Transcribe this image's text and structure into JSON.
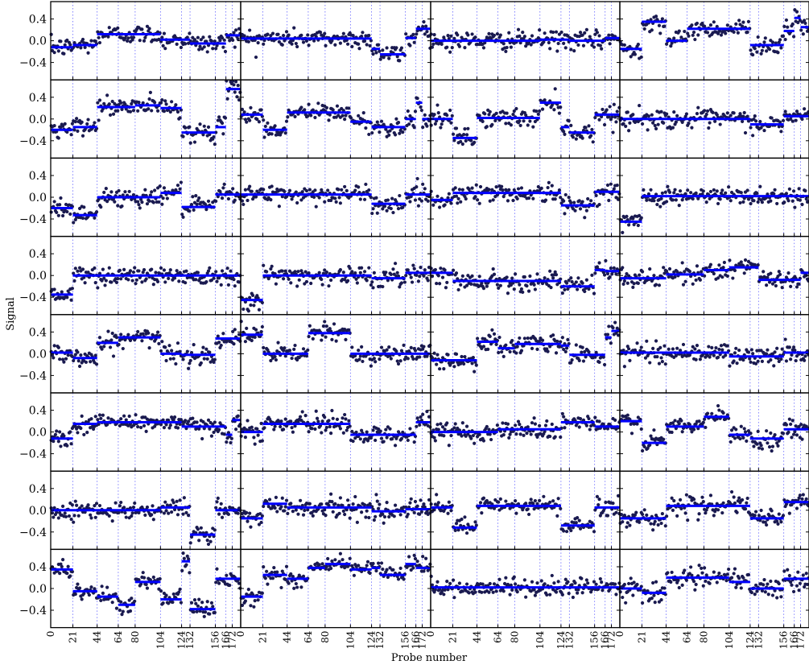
{
  "chart_data": {
    "type": "scatter",
    "layout": {
      "rows": 8,
      "cols": 4
    },
    "xlabel": "Probe number",
    "ylabel": "Signal",
    "xlim": [
      0,
      180
    ],
    "ylim": [
      -0.72,
      0.72
    ],
    "x_ticks": [
      0,
      21,
      44,
      64,
      80,
      104,
      124,
      132,
      156,
      166,
      172
    ],
    "y_ticks": [
      -0.4,
      0.0,
      0.4
    ],
    "y_tick_labels": [
      "−0.4",
      "0.0",
      "0.4"
    ],
    "vlines": [
      0,
      21,
      44,
      64,
      80,
      104,
      124,
      132,
      156,
      166,
      172
    ],
    "points_per_panel": 180,
    "colors": {
      "points": "#1a1a50",
      "segments": "#0000ff",
      "vlines": "#6666ff",
      "frame": "#000000"
    },
    "panels": [
      {
        "segments": [
          [
            0,
            21,
            -0.12
          ],
          [
            21,
            44,
            -0.08
          ],
          [
            44,
            104,
            0.12
          ],
          [
            104,
            132,
            0.02
          ],
          [
            132,
            166,
            -0.05
          ],
          [
            166,
            180,
            0.1
          ]
        ]
      },
      {
        "segments": [
          [
            0,
            124,
            0.04
          ],
          [
            124,
            132,
            -0.15
          ],
          [
            132,
            156,
            -0.25
          ],
          [
            156,
            166,
            0.05
          ],
          [
            166,
            180,
            0.22
          ]
        ]
      },
      {
        "segments": [
          [
            0,
            104,
            0.0
          ],
          [
            104,
            132,
            0.02
          ],
          [
            132,
            166,
            0.0
          ],
          [
            166,
            180,
            0.05
          ]
        ]
      },
      {
        "segments": [
          [
            0,
            21,
            -0.15
          ],
          [
            21,
            44,
            0.35
          ],
          [
            44,
            64,
            0.0
          ],
          [
            64,
            124,
            0.22
          ],
          [
            124,
            156,
            -0.08
          ],
          [
            156,
            166,
            0.18
          ],
          [
            166,
            172,
            0.42
          ],
          [
            172,
            180,
            0.25
          ]
        ]
      },
      {
        "segments": [
          [
            0,
            21,
            -0.2
          ],
          [
            21,
            44,
            -0.15
          ],
          [
            44,
            80,
            0.22
          ],
          [
            80,
            104,
            0.25
          ],
          [
            104,
            124,
            0.2
          ],
          [
            124,
            156,
            -0.25
          ],
          [
            156,
            166,
            -0.15
          ],
          [
            166,
            180,
            0.55
          ]
        ]
      },
      {
        "segments": [
          [
            0,
            21,
            0.08
          ],
          [
            21,
            44,
            -0.2
          ],
          [
            44,
            104,
            0.12
          ],
          [
            104,
            124,
            -0.05
          ],
          [
            124,
            156,
            -0.15
          ],
          [
            156,
            166,
            0.0
          ],
          [
            166,
            172,
            0.3
          ],
          [
            172,
            180,
            0.0
          ]
        ]
      },
      {
        "segments": [
          [
            0,
            21,
            0.0
          ],
          [
            21,
            44,
            -0.35
          ],
          [
            44,
            104,
            0.02
          ],
          [
            104,
            124,
            0.3
          ],
          [
            124,
            132,
            -0.15
          ],
          [
            132,
            156,
            -0.25
          ],
          [
            156,
            180,
            0.08
          ]
        ]
      },
      {
        "segments": [
          [
            0,
            124,
            0.0
          ],
          [
            124,
            156,
            -0.1
          ],
          [
            156,
            180,
            0.05
          ]
        ]
      },
      {
        "segments": [
          [
            0,
            21,
            -0.2
          ],
          [
            21,
            44,
            -0.33
          ],
          [
            44,
            104,
            0.0
          ],
          [
            104,
            124,
            0.08
          ],
          [
            124,
            156,
            -0.18
          ],
          [
            156,
            180,
            0.05
          ]
        ]
      },
      {
        "segments": [
          [
            0,
            124,
            0.05
          ],
          [
            124,
            156,
            -0.12
          ],
          [
            156,
            180,
            0.05
          ]
        ]
      },
      {
        "segments": [
          [
            0,
            21,
            -0.05
          ],
          [
            21,
            124,
            0.08
          ],
          [
            124,
            156,
            -0.15
          ],
          [
            156,
            180,
            0.1
          ]
        ]
      },
      {
        "segments": [
          [
            0,
            21,
            -0.45
          ],
          [
            21,
            180,
            0.02
          ]
        ]
      },
      {
        "segments": [
          [
            0,
            21,
            -0.35
          ],
          [
            21,
            180,
            0.0
          ]
        ]
      },
      {
        "segments": [
          [
            0,
            21,
            -0.45
          ],
          [
            21,
            124,
            0.0
          ],
          [
            124,
            156,
            -0.05
          ],
          [
            156,
            180,
            0.05
          ]
        ]
      },
      {
        "segments": [
          [
            0,
            21,
            0.05
          ],
          [
            21,
            124,
            -0.1
          ],
          [
            124,
            156,
            -0.2
          ],
          [
            156,
            166,
            0.1
          ],
          [
            166,
            180,
            0.08
          ]
        ]
      },
      {
        "segments": [
          [
            0,
            44,
            -0.05
          ],
          [
            44,
            80,
            0.02
          ],
          [
            80,
            104,
            0.1
          ],
          [
            104,
            132,
            0.15
          ],
          [
            132,
            172,
            -0.08
          ],
          [
            172,
            180,
            0.05
          ]
        ]
      },
      {
        "segments": [
          [
            0,
            21,
            0.02
          ],
          [
            21,
            44,
            -0.08
          ],
          [
            44,
            64,
            0.2
          ],
          [
            64,
            104,
            0.3
          ],
          [
            104,
            124,
            0.0
          ],
          [
            124,
            156,
            -0.02
          ],
          [
            156,
            180,
            0.28
          ]
        ]
      },
      {
        "segments": [
          [
            0,
            21,
            0.35
          ],
          [
            21,
            64,
            0.0
          ],
          [
            64,
            104,
            0.38
          ],
          [
            104,
            180,
            0.0
          ]
        ]
      },
      {
        "segments": [
          [
            0,
            44,
            -0.12
          ],
          [
            44,
            64,
            0.22
          ],
          [
            64,
            80,
            0.1
          ],
          [
            80,
            124,
            0.18
          ],
          [
            124,
            132,
            0.15
          ],
          [
            132,
            166,
            -0.02
          ],
          [
            166,
            172,
            0.3
          ],
          [
            172,
            180,
            0.42
          ]
        ]
      },
      {
        "segments": [
          [
            0,
            104,
            0.02
          ],
          [
            104,
            156,
            -0.05
          ],
          [
            156,
            180,
            0.02
          ]
        ]
      },
      {
        "segments": [
          [
            0,
            21,
            -0.12
          ],
          [
            21,
            44,
            0.15
          ],
          [
            44,
            124,
            0.18
          ],
          [
            124,
            166,
            0.1
          ],
          [
            166,
            172,
            -0.05
          ],
          [
            172,
            180,
            0.22
          ]
        ]
      },
      {
        "segments": [
          [
            0,
            21,
            0.0
          ],
          [
            21,
            104,
            0.15
          ],
          [
            104,
            166,
            -0.05
          ],
          [
            166,
            180,
            0.18
          ]
        ]
      },
      {
        "segments": [
          [
            0,
            64,
            0.0
          ],
          [
            64,
            124,
            0.05
          ],
          [
            124,
            156,
            0.18
          ],
          [
            156,
            180,
            0.1
          ]
        ]
      },
      {
        "segments": [
          [
            0,
            21,
            0.2
          ],
          [
            21,
            44,
            -0.2
          ],
          [
            44,
            80,
            0.1
          ],
          [
            80,
            104,
            0.28
          ],
          [
            104,
            124,
            -0.05
          ],
          [
            124,
            156,
            -0.12
          ],
          [
            156,
            180,
            0.05
          ]
        ]
      },
      {
        "segments": [
          [
            0,
            104,
            0.0
          ],
          [
            104,
            132,
            0.05
          ],
          [
            132,
            156,
            -0.45
          ],
          [
            156,
            180,
            0.0
          ]
        ]
      },
      {
        "segments": [
          [
            0,
            21,
            -0.15
          ],
          [
            21,
            44,
            0.12
          ],
          [
            44,
            124,
            0.05
          ],
          [
            124,
            156,
            -0.02
          ],
          [
            156,
            180,
            0.02
          ]
        ]
      },
      {
        "segments": [
          [
            0,
            21,
            0.05
          ],
          [
            21,
            44,
            -0.32
          ],
          [
            44,
            124,
            0.08
          ],
          [
            124,
            156,
            -0.28
          ],
          [
            156,
            180,
            0.05
          ]
        ]
      },
      {
        "segments": [
          [
            0,
            44,
            -0.15
          ],
          [
            44,
            124,
            0.08
          ],
          [
            124,
            156,
            -0.15
          ],
          [
            156,
            180,
            0.15
          ]
        ]
      },
      {
        "segments": [
          [
            0,
            21,
            0.35
          ],
          [
            21,
            44,
            -0.05
          ],
          [
            44,
            64,
            -0.15
          ],
          [
            64,
            80,
            -0.3
          ],
          [
            80,
            104,
            0.12
          ],
          [
            104,
            124,
            -0.2
          ],
          [
            124,
            132,
            0.5
          ],
          [
            132,
            156,
            -0.38
          ],
          [
            156,
            180,
            0.18
          ]
        ]
      },
      {
        "segments": [
          [
            0,
            21,
            -0.15
          ],
          [
            21,
            44,
            0.25
          ],
          [
            44,
            64,
            0.18
          ],
          [
            64,
            80,
            0.38
          ],
          [
            80,
            104,
            0.45
          ],
          [
            104,
            124,
            0.35
          ],
          [
            124,
            132,
            0.38
          ],
          [
            132,
            156,
            0.25
          ],
          [
            156,
            166,
            0.45
          ],
          [
            166,
            180,
            0.38
          ]
        ]
      },
      {
        "segments": [
          [
            0,
            180,
            0.02
          ]
        ]
      },
      {
        "segments": [
          [
            0,
            21,
            0.0
          ],
          [
            21,
            44,
            -0.08
          ],
          [
            44,
            104,
            0.2
          ],
          [
            104,
            124,
            0.12
          ],
          [
            124,
            156,
            0.0
          ],
          [
            156,
            180,
            0.18
          ]
        ]
      }
    ]
  }
}
